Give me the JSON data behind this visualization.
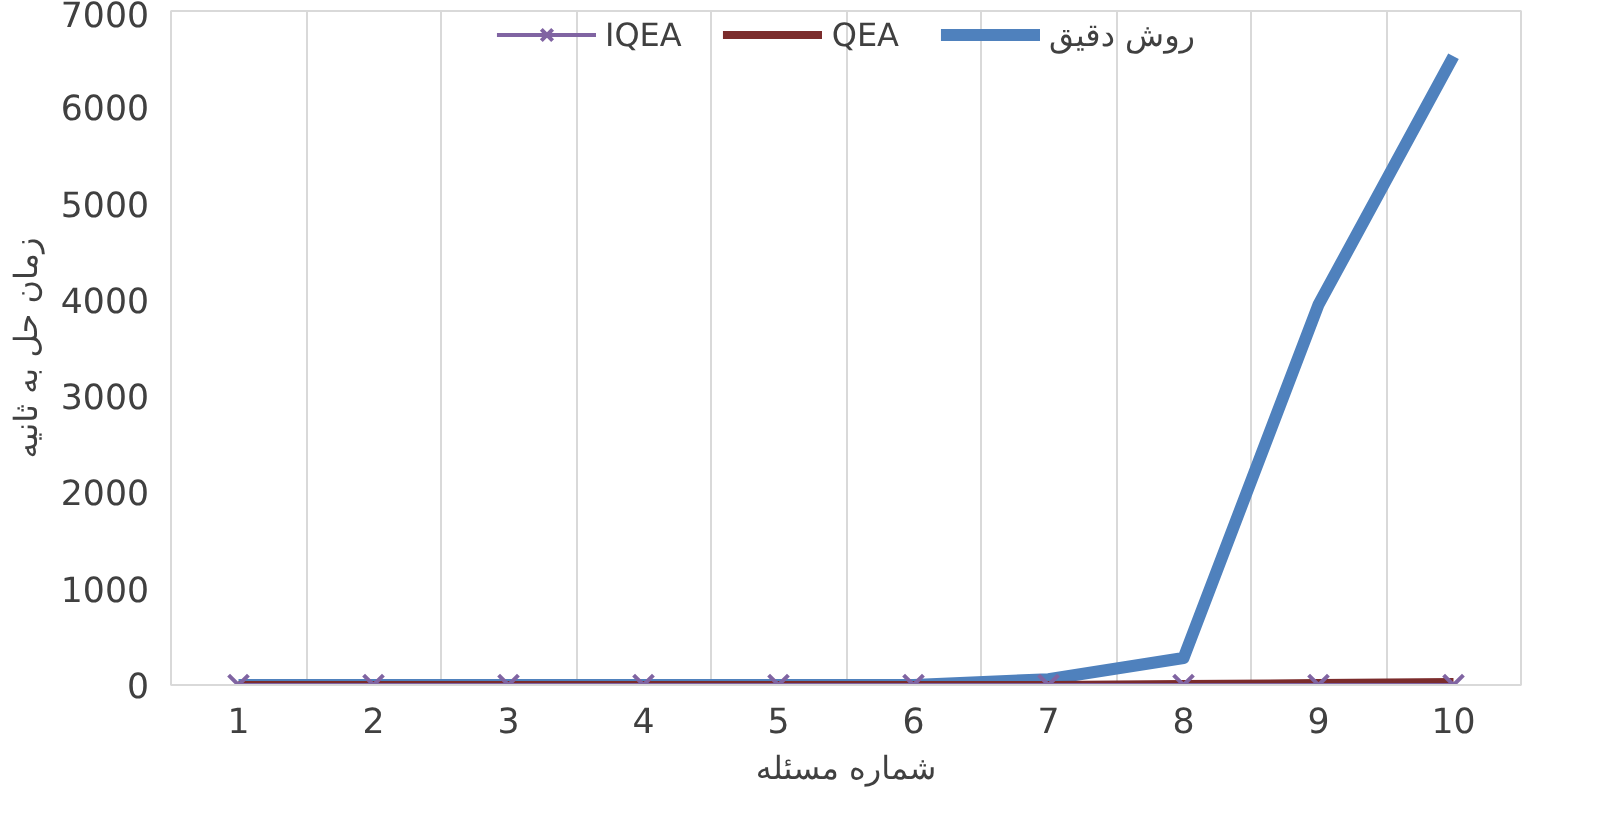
{
  "chart_data": {
    "type": "line",
    "xlabel": "شماره مسئله",
    "ylabel": "زمان حل به ثانیه",
    "categories": [
      "1",
      "2",
      "3",
      "4",
      "5",
      "6",
      "7",
      "8",
      "9",
      "10"
    ],
    "series": [
      {
        "name": "IQEA",
        "color": "#8064a2",
        "marker": "cross",
        "values": [
          0,
          0,
          0,
          0,
          0,
          0,
          0,
          0,
          0,
          0
        ]
      },
      {
        "name": "QEA",
        "color": "#7b2c2c",
        "marker": "none",
        "values": [
          0,
          0,
          0,
          0,
          0,
          0,
          0,
          10,
          20,
          30
        ]
      },
      {
        "name": "روش دقیق",
        "color": "#4f81bd",
        "marker": "none",
        "values": [
          0,
          0,
          0,
          0,
          0,
          0,
          60,
          280,
          3950,
          6530
        ]
      }
    ],
    "ylim": [
      0,
      7000
    ],
    "yticks": [
      0,
      1000,
      2000,
      3000,
      4000,
      5000,
      6000,
      7000
    ],
    "grid": "x",
    "legend": "top",
    "line_style": "solid"
  }
}
